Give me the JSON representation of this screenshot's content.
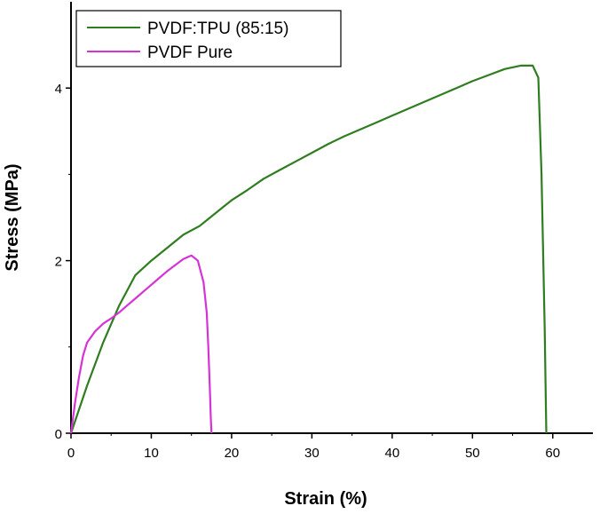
{
  "chart_data": {
    "type": "line",
    "title": "",
    "xlabel": "Strain (%)",
    "ylabel": "Stress (MPa)",
    "xlim": [
      0,
      65
    ],
    "ylim": [
      0,
      5
    ],
    "xticks": [
      0,
      10,
      20,
      30,
      40,
      50,
      60
    ],
    "yticks": [
      0,
      2,
      4
    ],
    "grid": false,
    "legend_position": "top-left",
    "series": [
      {
        "name": "PVDF:TPU (85:15)",
        "color": "#2e7d1f",
        "x": [
          0,
          2,
          4,
          6,
          8,
          10,
          12,
          14,
          16,
          18,
          20,
          22,
          24,
          26,
          28,
          30,
          32,
          34,
          36,
          38,
          40,
          42,
          44,
          46,
          48,
          50,
          52,
          54,
          56,
          57.5,
          58.2,
          58.6,
          59.0,
          59.2
        ],
        "y": [
          0,
          0.55,
          1.05,
          1.48,
          1.83,
          2.0,
          2.15,
          2.3,
          2.4,
          2.55,
          2.7,
          2.82,
          2.95,
          3.05,
          3.15,
          3.25,
          3.35,
          3.44,
          3.52,
          3.6,
          3.68,
          3.76,
          3.84,
          3.92,
          4.0,
          4.08,
          4.15,
          4.22,
          4.26,
          4.26,
          4.12,
          3.0,
          1.2,
          0
        ]
      },
      {
        "name": "PVDF Pure",
        "color": "#d633d6",
        "x": [
          0,
          0.5,
          1.0,
          1.5,
          2.0,
          3.0,
          4.0,
          5.0,
          6.0,
          7.0,
          8.0,
          9.0,
          10.0,
          11.0,
          12.0,
          13.0,
          14.0,
          15.0,
          15.8,
          16.5,
          16.9,
          17.1,
          17.3,
          17.4,
          17.5
        ],
        "y": [
          0,
          0.35,
          0.65,
          0.9,
          1.05,
          1.18,
          1.27,
          1.33,
          1.4,
          1.48,
          1.56,
          1.64,
          1.72,
          1.8,
          1.88,
          1.95,
          2.02,
          2.06,
          2.0,
          1.75,
          1.4,
          1.0,
          0.5,
          0.2,
          0
        ]
      }
    ]
  }
}
